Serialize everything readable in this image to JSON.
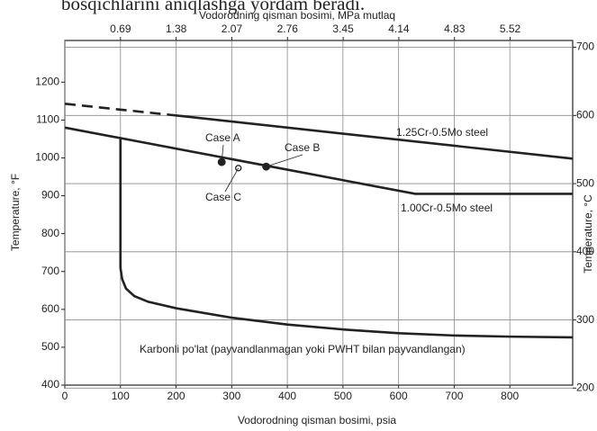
{
  "caption": "bosqichlarini aniqlashga yordam beradi.",
  "chart_data": {
    "type": "line",
    "x_label": "Vodorodning qisman bosimi, psia",
    "x2_label": "Vodorodning qisman bosimi, MPa mutlaq",
    "y_label": "Temperature, °F",
    "y2_label": "Temperature, °C",
    "xlim": [
      0,
      913
    ],
    "xticks": [
      0,
      100,
      200,
      300,
      400,
      500,
      600,
      700,
      800
    ],
    "x2lim": [
      0,
      6.295
    ],
    "x2ticks": [
      0.69,
      1.38,
      2.07,
      2.76,
      3.45,
      4.14,
      4.83,
      5.52
    ],
    "ylim": [
      400,
      1310
    ],
    "yticks": [
      400,
      500,
      600,
      700,
      800,
      900,
      1000,
      1100,
      1200
    ],
    "y2lim": [
      204.4,
      710
    ],
    "y2ticks": [
      200,
      300,
      400,
      500,
      600,
      700
    ],
    "xgrid": true,
    "y2grid": true,
    "series": [
      {
        "x": [
          0,
          200
        ],
        "values": [
          1143,
          1112
        ],
        "color": "#222222",
        "dashed": true
      },
      {
        "name": "1.25Cr-0.5Mo steel",
        "x": [
          200,
          913
        ],
        "values": [
          1112,
          998
        ],
        "color": "#222222"
      },
      {
        "name": "1.00Cr-0.5Mo steel",
        "x": [
          0,
          630,
          913
        ],
        "values": [
          1080,
          905,
          905
        ],
        "color": "#222222"
      },
      {
        "name": "Karbonli po'lat (payvandlanmagan yoki PWHT bilan payvandlangan)",
        "x": [
          100,
          100,
          103,
          110,
          125,
          150,
          200,
          300,
          400,
          500,
          600,
          700,
          800,
          913
        ],
        "values": [
          1055,
          710,
          680,
          655,
          635,
          620,
          603,
          578,
          560,
          547,
          537,
          531,
          528,
          526
        ],
        "color": "#222222"
      },
      {
        "name": "Case A",
        "x": [
          282
        ],
        "values": [
          989
        ],
        "color": "#222222",
        "marker": "filled"
      },
      {
        "name": "Case B",
        "x": [
          362
        ],
        "values": [
          977
        ],
        "color": "#222222",
        "marker": "filled"
      },
      {
        "name": "Case C",
        "x": [
          312
        ],
        "values": [
          973
        ],
        "color": "#222222",
        "marker": "open"
      }
    ]
  }
}
